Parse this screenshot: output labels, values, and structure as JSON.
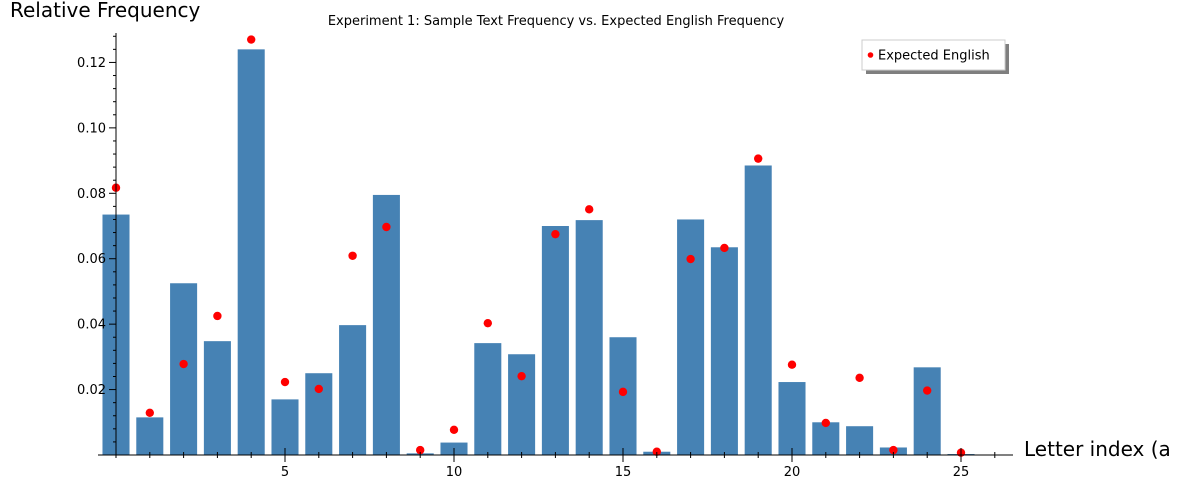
{
  "chart_data": {
    "type": "bar",
    "title": "Experiment 1: Sample Text Frequency vs. Expected English Frequency",
    "xlabel": "Letter index (a",
    "ylabel": "Relative Frequency",
    "x": [
      0,
      1,
      2,
      3,
      4,
      5,
      6,
      7,
      8,
      9,
      10,
      11,
      12,
      13,
      14,
      15,
      16,
      17,
      18,
      19,
      20,
      21,
      22,
      23,
      24,
      25
    ],
    "xlim": [
      -0.5,
      26.5
    ],
    "ylim": [
      0,
      0.129
    ],
    "x_ticks": [
      5,
      10,
      15,
      20,
      25
    ],
    "x_tick_labels": [
      "5",
      "10",
      "15",
      "20",
      "25"
    ],
    "y_ticks": [
      0.02,
      0.04,
      0.06,
      0.08,
      0.1,
      0.12
    ],
    "y_tick_labels": [
      "0.02",
      "0.04",
      "0.06",
      "0.08",
      "0.10",
      "0.12"
    ],
    "grid": false,
    "legend_position": "top-right",
    "series": [
      {
        "type": "bar",
        "color": "#4682b4",
        "values": [
          0.0735,
          0.0115,
          0.0525,
          0.0348,
          0.124,
          0.017,
          0.025,
          0.0397,
          0.0795,
          0.0005,
          0.0038,
          0.0342,
          0.0308,
          0.07,
          0.0718,
          0.036,
          0.001,
          0.072,
          0.0635,
          0.0885,
          0.0223,
          0.01,
          0.0088,
          0.0023,
          0.0268,
          0.0003
        ]
      },
      {
        "type": "scatter",
        "name": "Expected English",
        "color": "#ff0000",
        "values": [
          0.0817,
          0.0129,
          0.0278,
          0.0425,
          0.127,
          0.0223,
          0.0202,
          0.0609,
          0.0697,
          0.0015,
          0.0077,
          0.0403,
          0.0241,
          0.0675,
          0.0751,
          0.0193,
          0.001,
          0.0599,
          0.0633,
          0.0906,
          0.0276,
          0.0098,
          0.0236,
          0.0015,
          0.0197,
          0.0007
        ]
      }
    ]
  }
}
